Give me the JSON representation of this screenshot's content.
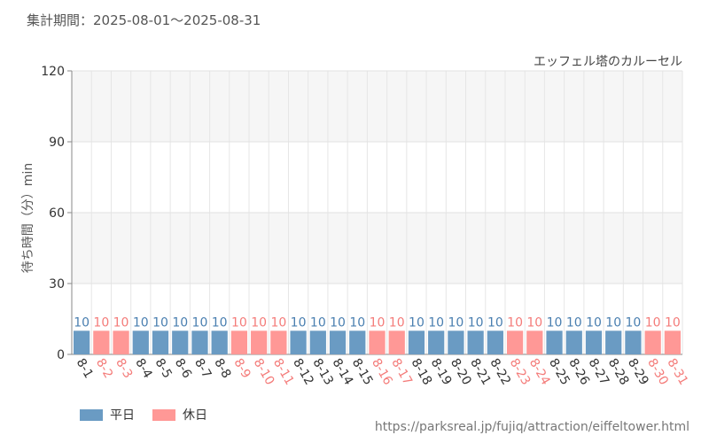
{
  "header": {
    "period": "集計期間：2025-08-01～2025-08-31",
    "attraction": "エッフェル塔のカルーセル"
  },
  "legend": {
    "weekday_label": "平日",
    "holiday_label": "休日"
  },
  "source": "https://parksreal.jp/fujiq/attraction/eiffeltower.html",
  "chart_data": {
    "type": "bar",
    "ylabel": "待ち時間（分）min",
    "ylim": [
      0,
      120
    ],
    "yticks": [
      0,
      30,
      60,
      90,
      120
    ],
    "grid": true,
    "legend_position": "bottom-left",
    "colors": {
      "weekday": "#6a9bc3",
      "holiday": "#ff9896",
      "weekday_label": "#4a7fb0",
      "holiday_label": "#f47c7a"
    },
    "categories": [
      "8-1",
      "8-2",
      "8-3",
      "8-4",
      "8-5",
      "8-6",
      "8-7",
      "8-8",
      "8-9",
      "8-10",
      "8-11",
      "8-12",
      "8-13",
      "8-14",
      "8-15",
      "8-16",
      "8-17",
      "8-18",
      "8-19",
      "8-20",
      "8-21",
      "8-22",
      "8-23",
      "8-24",
      "8-25",
      "8-26",
      "8-27",
      "8-28",
      "8-29",
      "8-30",
      "8-31"
    ],
    "values": [
      10,
      10,
      10,
      10,
      10,
      10,
      10,
      10,
      10,
      10,
      10,
      10,
      10,
      10,
      10,
      10,
      10,
      10,
      10,
      10,
      10,
      10,
      10,
      10,
      10,
      10,
      10,
      10,
      10,
      10,
      10
    ],
    "day_type": [
      "weekday",
      "holiday",
      "holiday",
      "weekday",
      "weekday",
      "weekday",
      "weekday",
      "weekday",
      "holiday",
      "holiday",
      "holiday",
      "weekday",
      "weekday",
      "weekday",
      "weekday",
      "holiday",
      "holiday",
      "weekday",
      "weekday",
      "weekday",
      "weekday",
      "weekday",
      "holiday",
      "holiday",
      "weekday",
      "weekday",
      "weekday",
      "weekday",
      "weekday",
      "holiday",
      "holiday"
    ]
  }
}
